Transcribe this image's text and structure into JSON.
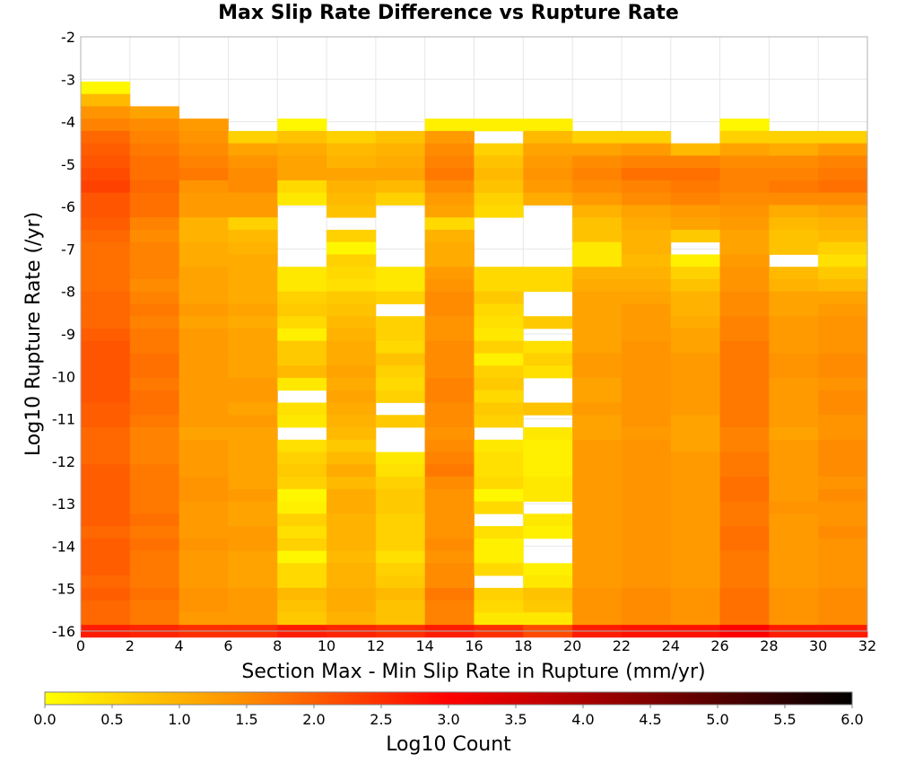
{
  "chart_data": {
    "type": "heatmap",
    "title": "Max Slip Rate Difference vs Rupture Rate",
    "xlabel": "Section Max - Min Slip Rate in Rupture (mm/yr)",
    "ylabel": "Log10 Rupture Rate (/yr)",
    "xlim": [
      0,
      32
    ],
    "ylim": [
      -16,
      -2
    ],
    "x_ticks": [
      "0",
      "2",
      "4",
      "6",
      "8",
      "10",
      "12",
      "14",
      "16",
      "18",
      "20",
      "22",
      "24",
      "26",
      "28",
      "30",
      "32"
    ],
    "y_ticks": [
      "-2",
      "-3",
      "-4",
      "-5",
      "-6",
      "-7",
      "-8",
      "-9",
      "-10",
      "-11",
      "-12",
      "-13",
      "-14",
      "-15",
      "-16"
    ],
    "x_bin_width": 2,
    "y_bin_width": 0.2857,
    "x_bins": [
      "0-2",
      "2-4",
      "4-6",
      "6-8",
      "8-10",
      "10-12",
      "12-14",
      "14-16",
      "16-18",
      "18-20",
      "20-22",
      "22-24",
      "24-26",
      "26-28",
      "28-30",
      "30-32"
    ],
    "y_bin_top": -3.2,
    "y_bin_bottom": -16.0,
    "cells_note": "Rows listed from top (-3.2) to bottom (-16.0); null = no data (white).",
    "cells": [
      [
        0.1,
        null,
        null,
        null,
        null,
        null,
        null,
        null,
        null,
        null,
        null,
        null,
        null,
        null,
        null,
        null
      ],
      [
        0.9,
        null,
        null,
        null,
        null,
        null,
        null,
        null,
        null,
        null,
        null,
        null,
        null,
        null,
        null,
        null
      ],
      [
        1.4,
        1.2,
        null,
        null,
        null,
        null,
        null,
        null,
        null,
        null,
        null,
        null,
        null,
        null,
        null,
        null
      ],
      [
        1.6,
        1.5,
        1.3,
        null,
        0.1,
        null,
        null,
        0.2,
        0.2,
        0.2,
        null,
        null,
        null,
        0.1,
        null,
        null
      ],
      [
        1.9,
        1.6,
        1.4,
        0.6,
        0.8,
        0.6,
        0.8,
        1.3,
        null,
        0.9,
        0.6,
        0.6,
        null,
        0.6,
        0.6,
        0.6
      ],
      [
        2.0,
        1.7,
        1.5,
        1.2,
        1.1,
        0.9,
        1.0,
        1.5,
        0.6,
        1.2,
        1.2,
        1.3,
        0.9,
        1.2,
        1.1,
        1.3
      ],
      [
        2.1,
        1.8,
        1.6,
        1.4,
        1.2,
        1.0,
        1.1,
        1.6,
        0.8,
        1.3,
        1.5,
        1.6,
        1.6,
        1.5,
        1.5,
        1.6
      ],
      [
        2.2,
        1.8,
        1.7,
        1.5,
        1.2,
        1.2,
        1.2,
        1.7,
        0.9,
        1.4,
        1.6,
        1.8,
        1.8,
        1.6,
        1.6,
        1.7
      ],
      [
        2.3,
        1.9,
        1.4,
        1.5,
        0.5,
        1.0,
        0.9,
        1.5,
        0.8,
        1.3,
        1.5,
        1.6,
        1.7,
        1.6,
        1.7,
        1.8
      ],
      [
        2.1,
        1.8,
        1.3,
        1.3,
        0.3,
        0.9,
        0.6,
        1.3,
        0.6,
        1.1,
        1.3,
        1.5,
        1.6,
        1.5,
        1.5,
        1.5
      ],
      [
        2.1,
        1.8,
        1.3,
        1.3,
        null,
        0.8,
        null,
        1.2,
        0.5,
        null,
        1.0,
        1.2,
        1.3,
        1.4,
        1.1,
        1.2
      ],
      [
        2.0,
        1.6,
        1.0,
        0.6,
        null,
        null,
        null,
        0.5,
        null,
        null,
        0.8,
        1.1,
        1.2,
        1.3,
        0.9,
        1.0
      ],
      [
        1.9,
        1.5,
        1.0,
        0.9,
        null,
        0.6,
        null,
        1.0,
        null,
        null,
        0.8,
        1.0,
        0.7,
        1.2,
        0.8,
        0.9
      ],
      [
        1.8,
        1.6,
        1.1,
        1.0,
        null,
        0.1,
        null,
        1.1,
        null,
        null,
        0.3,
        1.0,
        null,
        1.2,
        0.8,
        0.6
      ],
      [
        1.8,
        1.6,
        1.1,
        1.1,
        null,
        0.6,
        null,
        1.1,
        null,
        null,
        0.3,
        0.9,
        0.2,
        1.3,
        null,
        0.4
      ],
      [
        1.8,
        1.6,
        1.2,
        1.1,
        0.3,
        0.5,
        0.3,
        1.3,
        0.5,
        0.5,
        1.0,
        1.0,
        0.6,
        1.4,
        0.9,
        0.7
      ],
      [
        1.8,
        1.5,
        1.2,
        1.1,
        0.3,
        0.4,
        0.3,
        1.4,
        0.5,
        0.5,
        1.1,
        1.1,
        0.8,
        1.4,
        1.0,
        0.9
      ],
      [
        1.9,
        1.6,
        1.2,
        1.1,
        0.6,
        0.7,
        0.6,
        1.5,
        0.7,
        null,
        1.2,
        1.2,
        1.0,
        1.5,
        1.2,
        1.2
      ],
      [
        1.9,
        1.7,
        1.3,
        1.2,
        0.7,
        0.8,
        null,
        1.5,
        0.5,
        null,
        1.2,
        1.3,
        1.0,
        1.5,
        1.2,
        1.3
      ],
      [
        1.9,
        1.6,
        1.2,
        1.1,
        0.5,
        0.9,
        0.6,
        1.4,
        0.4,
        0.7,
        1.2,
        1.3,
        1.1,
        1.6,
        1.3,
        1.4
      ],
      [
        2.0,
        1.7,
        1.3,
        1.2,
        0.2,
        1.0,
        0.6,
        1.4,
        0.3,
        null,
        1.2,
        1.3,
        1.2,
        1.6,
        1.3,
        1.4
      ],
      [
        2.1,
        1.7,
        1.3,
        1.2,
        0.7,
        1.1,
        0.5,
        1.5,
        0.6,
        0.4,
        1.2,
        1.4,
        1.2,
        1.7,
        1.3,
        1.4
      ],
      [
        2.1,
        1.8,
        1.3,
        1.2,
        0.7,
        1.1,
        0.8,
        1.5,
        0.2,
        0.6,
        1.3,
        1.4,
        1.3,
        1.7,
        1.4,
        1.5
      ],
      [
        2.1,
        1.8,
        1.3,
        1.2,
        0.9,
        1.2,
        0.6,
        1.5,
        0.6,
        0.4,
        1.3,
        1.4,
        1.3,
        1.7,
        1.4,
        1.5
      ],
      [
        2.1,
        1.7,
        1.3,
        1.3,
        0.3,
        1.1,
        0.5,
        1.6,
        0.7,
        null,
        1.2,
        1.4,
        1.3,
        1.7,
        1.3,
        1.4
      ],
      [
        2.1,
        1.8,
        1.3,
        1.3,
        null,
        1.2,
        0.6,
        1.6,
        0.5,
        null,
        1.2,
        1.4,
        1.3,
        1.7,
        1.3,
        1.5
      ],
      [
        2.0,
        1.8,
        1.3,
        1.2,
        0.4,
        1.1,
        null,
        1.5,
        0.7,
        0.8,
        1.3,
        1.4,
        1.3,
        1.7,
        1.3,
        1.5
      ],
      [
        2.0,
        1.7,
        1.3,
        1.3,
        0.3,
        1.0,
        0.7,
        1.5,
        0.6,
        null,
        1.2,
        1.4,
        1.2,
        1.7,
        1.3,
        1.4
      ],
      [
        1.9,
        1.6,
        1.2,
        1.2,
        null,
        0.9,
        null,
        1.4,
        null,
        0.3,
        1.2,
        1.3,
        1.2,
        1.6,
        1.2,
        1.4
      ],
      [
        1.9,
        1.6,
        1.3,
        1.2,
        0.4,
        0.7,
        null,
        1.5,
        0.3,
        0.2,
        1.3,
        1.4,
        1.2,
        1.6,
        1.3,
        1.5
      ],
      [
        1.9,
        1.6,
        1.3,
        1.2,
        0.6,
        0.9,
        0.3,
        1.6,
        0.4,
        0.2,
        1.3,
        1.4,
        1.3,
        1.7,
        1.3,
        1.5
      ],
      [
        2.0,
        1.7,
        1.3,
        1.2,
        0.7,
        1.1,
        0.4,
        1.7,
        0.4,
        0.2,
        1.3,
        1.4,
        1.3,
        1.7,
        1.3,
        1.5
      ],
      [
        2.0,
        1.7,
        1.4,
        1.2,
        0.6,
        0.9,
        0.6,
        1.5,
        0.5,
        0.3,
        1.3,
        1.4,
        1.3,
        1.8,
        1.3,
        1.4
      ],
      [
        2.0,
        1.7,
        1.4,
        1.3,
        0.1,
        1.1,
        0.7,
        1.4,
        0.1,
        0.3,
        1.3,
        1.4,
        1.3,
        1.8,
        1.3,
        1.5
      ],
      [
        2.0,
        1.7,
        1.3,
        1.2,
        0.2,
        1.1,
        0.7,
        1.4,
        0.5,
        null,
        1.3,
        1.4,
        1.3,
        1.7,
        1.4,
        1.4
      ],
      [
        2.0,
        1.8,
        1.3,
        1.2,
        0.6,
        1.0,
        0.6,
        1.4,
        null,
        0.3,
        1.3,
        1.4,
        1.3,
        1.7,
        1.3,
        1.4
      ],
      [
        1.9,
        1.7,
        1.3,
        1.3,
        0.4,
        1.0,
        0.6,
        1.4,
        0.4,
        0.2,
        1.3,
        1.4,
        1.3,
        1.8,
        1.3,
        1.5
      ],
      [
        2.0,
        1.8,
        1.4,
        1.3,
        0.6,
        1.0,
        0.6,
        1.5,
        0.2,
        null,
        1.3,
        1.4,
        1.3,
        1.8,
        1.3,
        1.4
      ],
      [
        2.0,
        1.7,
        1.3,
        1.2,
        0.1,
        0.9,
        0.4,
        1.4,
        0.2,
        null,
        1.3,
        1.4,
        1.3,
        1.7,
        1.3,
        1.4
      ],
      [
        2.0,
        1.7,
        1.3,
        1.2,
        0.5,
        1.0,
        0.6,
        1.5,
        0.5,
        0.2,
        1.3,
        1.4,
        1.3,
        1.7,
        1.3,
        1.4
      ],
      [
        1.9,
        1.7,
        1.3,
        1.2,
        0.5,
        1.0,
        0.7,
        1.5,
        null,
        0.3,
        1.3,
        1.4,
        1.3,
        1.7,
        1.3,
        1.4
      ],
      [
        2.0,
        1.8,
        1.4,
        1.3,
        0.9,
        1.1,
        0.9,
        1.7,
        0.6,
        0.8,
        1.4,
        1.5,
        1.4,
        1.8,
        1.4,
        1.5
      ],
      [
        1.9,
        1.7,
        1.4,
        1.3,
        0.8,
        1.1,
        0.8,
        1.6,
        0.5,
        0.7,
        1.4,
        1.5,
        1.4,
        1.8,
        1.4,
        1.5
      ],
      [
        1.9,
        1.7,
        1.3,
        1.3,
        0.7,
        1.0,
        0.8,
        1.6,
        0.3,
        0.3,
        1.4,
        1.5,
        1.4,
        1.8,
        1.4,
        1.5
      ],
      [
        2.7,
        2.6,
        2.5,
        2.5,
        2.7,
        2.6,
        2.5,
        2.7,
        2.5,
        2.2,
        2.7,
        2.8,
        2.8,
        3.0,
        2.7,
        2.7
      ]
    ],
    "colorbar": {
      "label": "Log10 Count",
      "min": 0.0,
      "max": 6.0,
      "ticks": [
        "0.0",
        "0.5",
        "1.0",
        "1.5",
        "2.0",
        "2.5",
        "3.0",
        "3.5",
        "4.0",
        "4.5",
        "5.0",
        "5.5",
        "6.0"
      ],
      "colors": [
        "#ffff00",
        "#ff8c00",
        "#ff0000",
        "#000000"
      ]
    },
    "grid": true
  }
}
